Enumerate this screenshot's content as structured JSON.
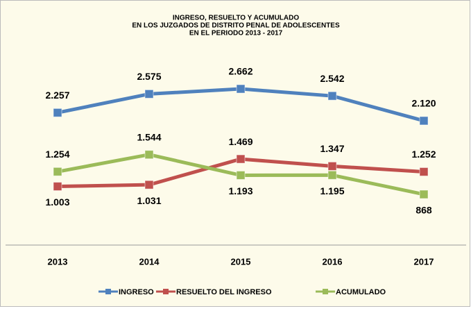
{
  "chart_data": {
    "type": "line",
    "title": [
      "INGRESO, RESUELTO Y ACUMULADO",
      "EN LOS JUZGADOS DE DISTRITO PENAL DE ADOLESCENTES",
      "EN EL PERIODO 2013 - 2017"
    ],
    "categories": [
      "2013",
      "2014",
      "2015",
      "2016",
      "2017"
    ],
    "series": [
      {
        "name": "INGRESO",
        "color": "#4f81bd",
        "values": [
          2257,
          2575,
          2662,
          2542,
          2120
        ],
        "value_labels": [
          "2.257",
          "2.575",
          "2.662",
          "2.542",
          "2.120"
        ]
      },
      {
        "name": "RESUELTO DEL INGRESO",
        "color": "#c0504d",
        "values": [
          1003,
          1031,
          1469,
          1347,
          1252
        ],
        "value_labels": [
          "1.003",
          "1.031",
          "1.469",
          "1.347",
          "1.252"
        ]
      },
      {
        "name": "ACUMULADO",
        "color": "#9bbb59",
        "values": [
          1254,
          1544,
          1193,
          1195,
          868
        ],
        "value_labels": [
          "1.254",
          "1.544",
          "1.193",
          "1.195",
          "868"
        ]
      }
    ],
    "ylim": [
      0,
      3000
    ]
  }
}
